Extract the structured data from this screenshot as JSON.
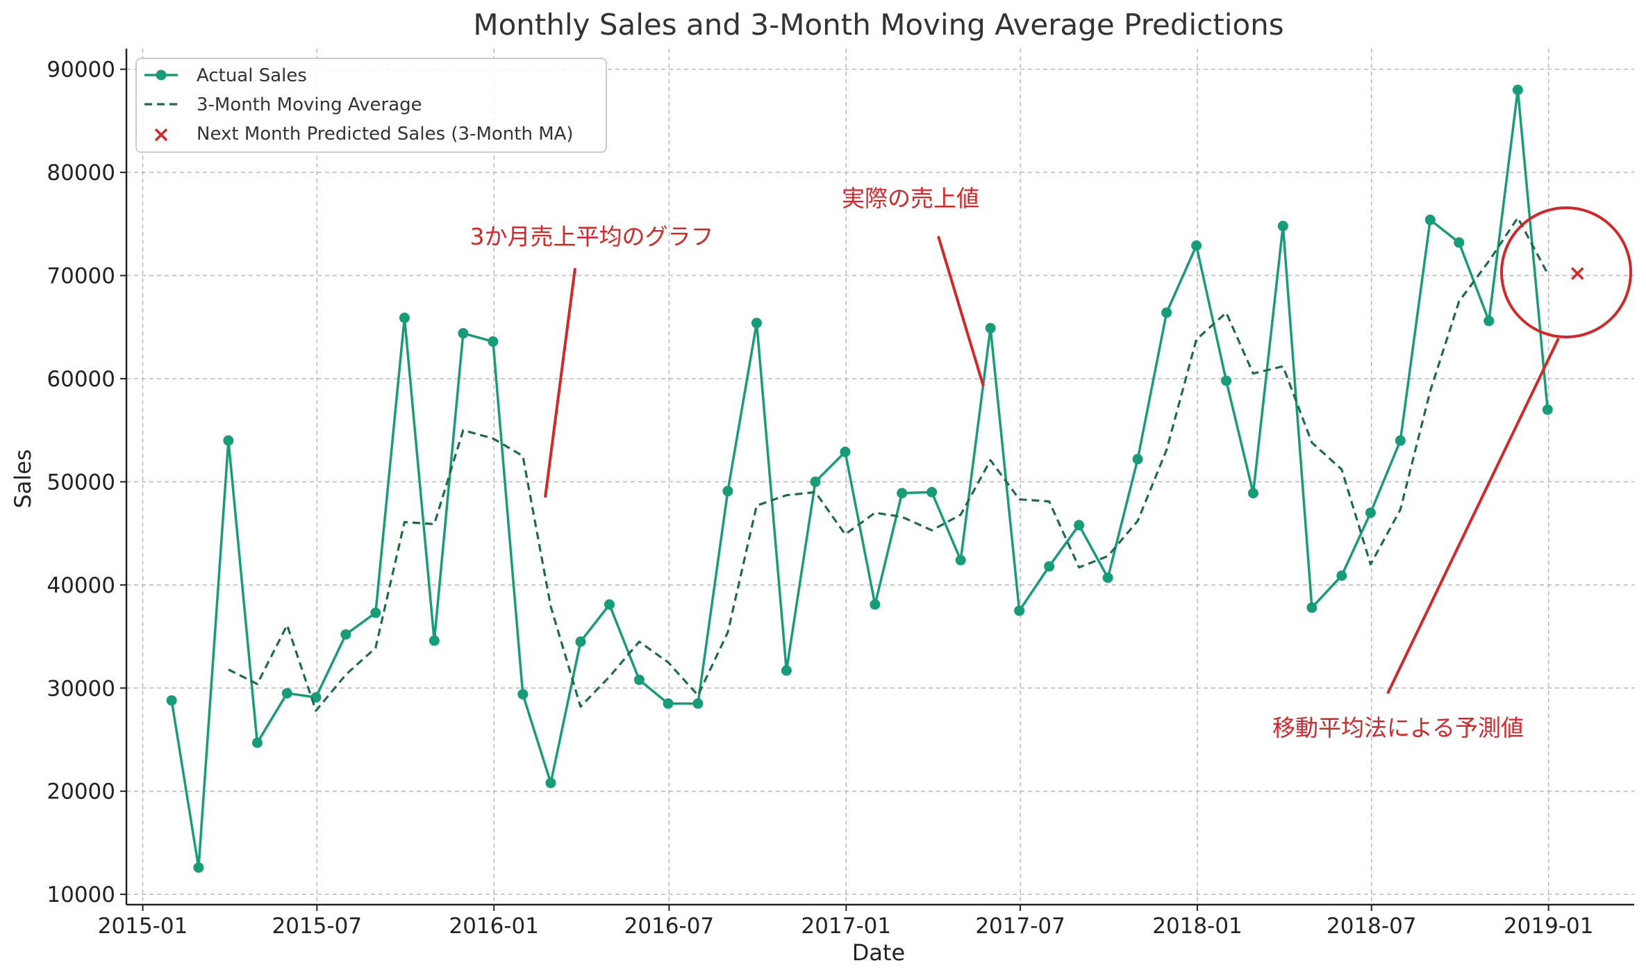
{
  "chart_data": {
    "type": "line",
    "title": "Monthly Sales and 3-Month Moving Average Predictions",
    "xlabel": "Date",
    "ylabel": "Sales",
    "ylim": [
      9000,
      92000
    ],
    "xlim": [
      "2014-12-15",
      "2019-03-31"
    ],
    "grid": true,
    "legend_position": "top-left",
    "x_ticks": [
      "2015-01",
      "2015-07",
      "2016-01",
      "2016-07",
      "2017-01",
      "2017-07",
      "2018-01",
      "2018-07",
      "2019-01"
    ],
    "y_ticks": [
      10000,
      20000,
      30000,
      40000,
      50000,
      60000,
      70000,
      80000,
      90000
    ],
    "x": [
      "2015-01-31",
      "2015-02-28",
      "2015-03-31",
      "2015-04-30",
      "2015-05-31",
      "2015-06-30",
      "2015-07-31",
      "2015-08-31",
      "2015-09-30",
      "2015-10-31",
      "2015-11-30",
      "2015-12-31",
      "2016-01-31",
      "2016-02-29",
      "2016-03-31",
      "2016-04-30",
      "2016-05-31",
      "2016-06-30",
      "2016-07-31",
      "2016-08-31",
      "2016-09-30",
      "2016-10-31",
      "2016-11-30",
      "2016-12-31",
      "2017-01-31",
      "2017-02-28",
      "2017-03-31",
      "2017-04-30",
      "2017-05-31",
      "2017-06-30",
      "2017-07-31",
      "2017-08-31",
      "2017-09-30",
      "2017-10-31",
      "2017-11-30",
      "2017-12-31",
      "2018-01-31",
      "2018-02-28",
      "2018-03-31",
      "2018-04-30",
      "2018-05-31",
      "2018-06-30",
      "2018-07-31",
      "2018-08-31",
      "2018-09-30",
      "2018-10-31",
      "2018-11-30",
      "2018-12-31"
    ],
    "series": [
      {
        "name": "Actual Sales",
        "color": "#169c76",
        "style": "solid-marker",
        "values": [
          28800,
          12600,
          54000,
          24700,
          29500,
          29100,
          35200,
          37300,
          65900,
          34600,
          64400,
          63600,
          29400,
          20800,
          34500,
          38100,
          30800,
          28500,
          28500,
          49100,
          65400,
          31700,
          50000,
          52900,
          38100,
          48900,
          49000,
          42400,
          64900,
          37500,
          41800,
          45800,
          40700,
          52200,
          66400,
          72900,
          59800,
          48900,
          74800,
          37800,
          40900,
          47000,
          54000,
          75400,
          73200,
          65600,
          88000,
          57000
        ]
      },
      {
        "name": "3-Month Moving Average",
        "color": "#1e6b4c",
        "style": "dashed",
        "values": [
          null,
          null,
          31800,
          30400,
          36100,
          27800,
          31300,
          33900,
          46100,
          45900,
          55000,
          54200,
          52500,
          37900,
          28200,
          31100,
          34500,
          32500,
          29300,
          35400,
          47700,
          48700,
          49000,
          44900,
          47000,
          46600,
          45300,
          46800,
          52100,
          48300,
          48100,
          41700,
          42800,
          46200,
          53100,
          63800,
          66400,
          60500,
          61200,
          53800,
          51200,
          42000,
          47300,
          58800,
          67500,
          71400,
          75600,
          70200
        ]
      }
    ],
    "prediction": {
      "name": "Next Month Predicted Sales (3-Month MA)",
      "x": "2019-01-31",
      "value": 70200,
      "color": "#d62728",
      "marker": "x"
    },
    "annotations": [
      {
        "text": "3か月売上平均のグラフ",
        "color": "#d62728"
      },
      {
        "text": "実際の売上値",
        "color": "#d62728"
      },
      {
        "text": "移動平均法による予測値",
        "color": "#d62728"
      }
    ]
  }
}
